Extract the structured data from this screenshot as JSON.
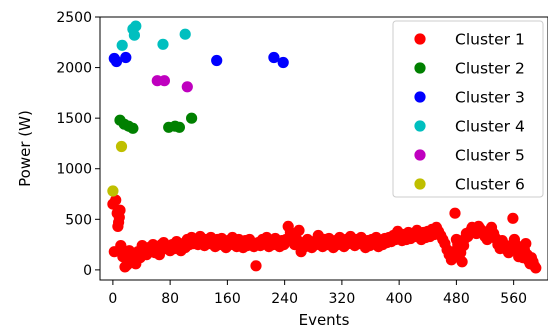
{
  "chart_data": {
    "type": "scatter",
    "title": "",
    "xlabel": "Events",
    "ylabel": "Power (W)",
    "xlim": [
      -18,
      608
    ],
    "ylim": [
      -100,
      2500
    ],
    "xticks": [
      0,
      80,
      160,
      240,
      320,
      400,
      480,
      560
    ],
    "yticks": [
      0,
      500,
      1000,
      1500,
      2000,
      2500
    ],
    "grid": false,
    "legend_position": "upper right",
    "series": [
      {
        "name": "Cluster 1",
        "color": "#ff0000",
        "points": [
          [
            0,
            650
          ],
          [
            2,
            180
          ],
          [
            4,
            690
          ],
          [
            6,
            560
          ],
          [
            7,
            430
          ],
          [
            8,
            470
          ],
          [
            9,
            520
          ],
          [
            10,
            590
          ],
          [
            11,
            240
          ],
          [
            12,
            170
          ],
          [
            14,
            130
          ],
          [
            16,
            160
          ],
          [
            17,
            30
          ],
          [
            20,
            50
          ],
          [
            23,
            190
          ],
          [
            26,
            80
          ],
          [
            29,
            140
          ],
          [
            32,
            60
          ],
          [
            35,
            180
          ],
          [
            38,
            120
          ],
          [
            41,
            240
          ],
          [
            44,
            190
          ],
          [
            47,
            150
          ],
          [
            50,
            220
          ],
          [
            53,
            180
          ],
          [
            56,
            250
          ],
          [
            59,
            170
          ],
          [
            62,
            220
          ],
          [
            65,
            150
          ],
          [
            68,
            250
          ],
          [
            71,
            270
          ],
          [
            74,
            210
          ],
          [
            77,
            230
          ],
          [
            80,
            190
          ],
          [
            83,
            250
          ],
          [
            86,
            210
          ],
          [
            89,
            280
          ],
          [
            92,
            240
          ],
          [
            95,
            190
          ],
          [
            98,
            260
          ],
          [
            101,
            220
          ],
          [
            104,
            300
          ],
          [
            107,
            250
          ],
          [
            110,
            320
          ],
          [
            113,
            260
          ],
          [
            116,
            300
          ],
          [
            119,
            250
          ],
          [
            122,
            330
          ],
          [
            125,
            280
          ],
          [
            128,
            240
          ],
          [
            131,
            300
          ],
          [
            134,
            260
          ],
          [
            137,
            320
          ],
          [
            140,
            270
          ],
          [
            143,
            230
          ],
          [
            146,
            300
          ],
          [
            149,
            250
          ],
          [
            152,
            310
          ],
          [
            155,
            270
          ],
          [
            158,
            220
          ],
          [
            161,
            290
          ],
          [
            164,
            250
          ],
          [
            167,
            320
          ],
          [
            170,
            270
          ],
          [
            173,
            230
          ],
          [
            176,
            300
          ],
          [
            179,
            260
          ],
          [
            182,
            220
          ],
          [
            185,
            290
          ],
          [
            188,
            240
          ],
          [
            191,
            300
          ],
          [
            194,
            260
          ],
          [
            197,
            230
          ],
          [
            200,
            40
          ],
          [
            203,
            270
          ],
          [
            206,
            240
          ],
          [
            209,
            300
          ],
          [
            212,
            260
          ],
          [
            215,
            320
          ],
          [
            218,
            230
          ],
          [
            221,
            280
          ],
          [
            224,
            250
          ],
          [
            227,
            310
          ],
          [
            230,
            270
          ],
          [
            233,
            230
          ],
          [
            236,
            290
          ],
          [
            239,
            250
          ],
          [
            242,
            300
          ],
          [
            245,
            430
          ],
          [
            248,
            370
          ],
          [
            251,
            280
          ],
          [
            254,
            250
          ],
          [
            257,
            300
          ],
          [
            260,
            390
          ],
          [
            263,
            180
          ],
          [
            266,
            270
          ],
          [
            269,
            230
          ],
          [
            272,
            300
          ],
          [
            275,
            260
          ],
          [
            278,
            220
          ],
          [
            281,
            280
          ],
          [
            284,
            250
          ],
          [
            287,
            340
          ],
          [
            290,
            270
          ],
          [
            293,
            230
          ],
          [
            296,
            300
          ],
          [
            299,
            250
          ],
          [
            302,
            310
          ],
          [
            305,
            270
          ],
          [
            308,
            220
          ],
          [
            311,
            290
          ],
          [
            314,
            250
          ],
          [
            317,
            320
          ],
          [
            320,
            270
          ],
          [
            323,
            230
          ],
          [
            326,
            300
          ],
          [
            329,
            260
          ],
          [
            332,
            330
          ],
          [
            335,
            280
          ],
          [
            338,
            240
          ],
          [
            341,
            300
          ],
          [
            344,
            260
          ],
          [
            347,
            320
          ],
          [
            350,
            270
          ],
          [
            353,
            220
          ],
          [
            356,
            290
          ],
          [
            359,
            240
          ],
          [
            362,
            300
          ],
          [
            365,
            260
          ],
          [
            368,
            320
          ],
          [
            371,
            230
          ],
          [
            374,
            280
          ],
          [
            377,
            250
          ],
          [
            380,
            310
          ],
          [
            383,
            270
          ],
          [
            386,
            320
          ],
          [
            389,
            280
          ],
          [
            392,
            340
          ],
          [
            395,
            300
          ],
          [
            398,
            380
          ],
          [
            401,
            330
          ],
          [
            404,
            290
          ],
          [
            407,
            350
          ],
          [
            410,
            300
          ],
          [
            413,
            370
          ],
          [
            416,
            310
          ],
          [
            419,
            360
          ],
          [
            422,
            330
          ],
          [
            425,
            390
          ],
          [
            428,
            350
          ],
          [
            431,
            300
          ],
          [
            434,
            370
          ],
          [
            437,
            320
          ],
          [
            440,
            380
          ],
          [
            443,
            330
          ],
          [
            446,
            400
          ],
          [
            449,
            350
          ],
          [
            452,
            420
          ],
          [
            455,
            380
          ],
          [
            458,
            340
          ],
          [
            461,
            300
          ],
          [
            464,
            260
          ],
          [
            467,
            200
          ],
          [
            470,
            150
          ],
          [
            473,
            100
          ],
          [
            476,
            180
          ],
          [
            478,
            560
          ],
          [
            480,
            300
          ],
          [
            482,
            250
          ],
          [
            484,
            120
          ],
          [
            486,
            170
          ],
          [
            488,
            80
          ],
          [
            490,
            240
          ],
          [
            492,
            310
          ],
          [
            494,
            360
          ],
          [
            496,
            330
          ],
          [
            499,
            380
          ],
          [
            502,
            420
          ],
          [
            505,
            390
          ],
          [
            508,
            360
          ],
          [
            511,
            430
          ],
          [
            514,
            400
          ],
          [
            517,
            380
          ],
          [
            520,
            330
          ],
          [
            523,
            300
          ],
          [
            526,
            380
          ],
          [
            529,
            420
          ],
          [
            532,
            360
          ],
          [
            535,
            310
          ],
          [
            538,
            250
          ],
          [
            541,
            210
          ],
          [
            544,
            290
          ],
          [
            547,
            250
          ],
          [
            550,
            200
          ],
          [
            553,
            170
          ],
          [
            556,
            240
          ],
          [
            559,
            510
          ],
          [
            561,
            300
          ],
          [
            563,
            250
          ],
          [
            565,
            180
          ],
          [
            567,
            130
          ],
          [
            569,
            210
          ],
          [
            571,
            160
          ],
          [
            573,
            120
          ],
          [
            575,
            200
          ],
          [
            577,
            260
          ],
          [
            579,
            150
          ],
          [
            581,
            90
          ],
          [
            583,
            60
          ],
          [
            585,
            120
          ],
          [
            587,
            80
          ],
          [
            589,
            40
          ],
          [
            591,
            20
          ]
        ]
      },
      {
        "name": "Cluster 2",
        "color": "#008000",
        "points": [
          [
            10,
            1480
          ],
          [
            16,
            1440
          ],
          [
            22,
            1420
          ],
          [
            28,
            1400
          ],
          [
            78,
            1410
          ],
          [
            87,
            1420
          ],
          [
            93,
            1410
          ],
          [
            110,
            1500
          ]
        ]
      },
      {
        "name": "Cluster 3",
        "color": "#0000ff",
        "points": [
          [
            2,
            2090
          ],
          [
            5,
            2060
          ],
          [
            18,
            2100
          ],
          [
            145,
            2070
          ],
          [
            225,
            2100
          ],
          [
            238,
            2050
          ]
        ]
      },
      {
        "name": "Cluster 4",
        "color": "#00bfbf",
        "points": [
          [
            13,
            2220
          ],
          [
            28,
            2380
          ],
          [
            30,
            2320
          ],
          [
            32,
            2410
          ],
          [
            70,
            2230
          ],
          [
            101,
            2330
          ]
        ]
      },
      {
        "name": "Cluster 5",
        "color": "#bf00bf",
        "points": [
          [
            62,
            1870
          ],
          [
            72,
            1870
          ],
          [
            104,
            1810
          ]
        ]
      },
      {
        "name": "Cluster 6",
        "color": "#bfbf00",
        "points": [
          [
            0,
            780
          ],
          [
            12,
            1220
          ]
        ]
      }
    ]
  }
}
